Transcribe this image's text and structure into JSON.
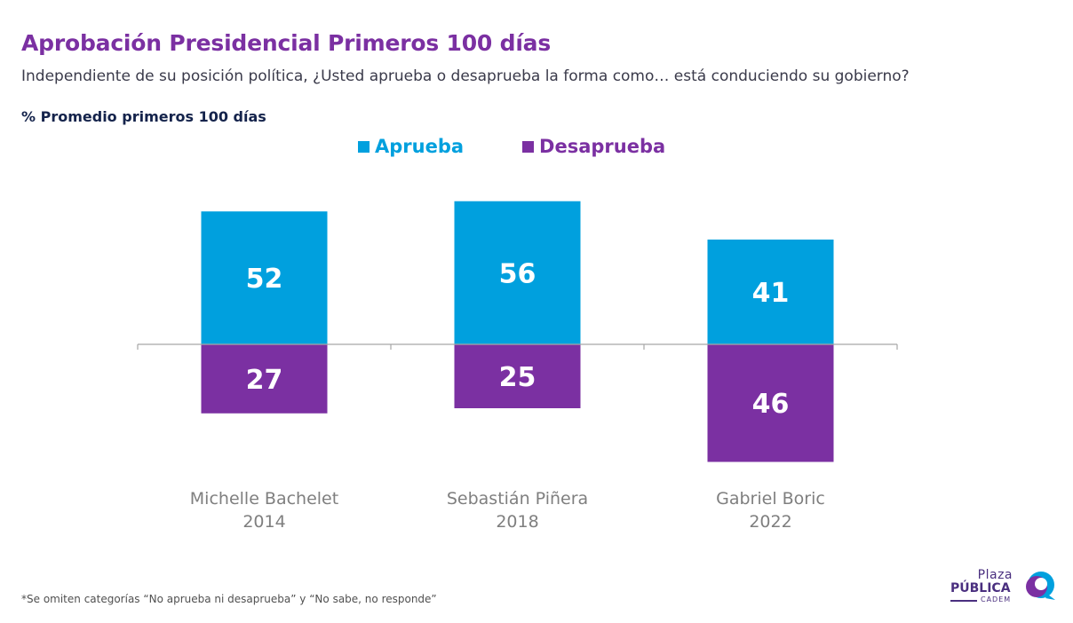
{
  "header": {
    "title": "Aprobación Presidencial Primeros 100 días",
    "subtitle": "Independiente de su posición política, ¿Usted aprueba o desaprueba la forma como… está conduciendo su gobierno?",
    "note": "% Promedio primeros 100 días"
  },
  "legend": {
    "approve": "Aprueba",
    "disapprove": "Desaprueba"
  },
  "footnote": "*Se omiten categorías “No aprueba ni desaprueba” y “No sabe, no responde”",
  "logo": {
    "line1": "Plaza",
    "line2": "PÚBLICA",
    "line3": "CADEM"
  },
  "colors": {
    "approve": "#00a0de",
    "disapprove": "#7b30a2",
    "title": "#7b30a2",
    "axis": "#a6a6a6"
  },
  "chart_data": {
    "type": "bar",
    "stacked": "diverging",
    "categories": [
      [
        "Michelle Bachelet",
        "2014"
      ],
      [
        "Sebastián Piñera",
        "2018"
      ],
      [
        "Gabriel Boric",
        "2022"
      ]
    ],
    "series": [
      {
        "name": "Aprueba",
        "values": [
          52,
          56,
          41
        ],
        "direction": "up"
      },
      {
        "name": "Desaprueba",
        "values": [
          27,
          25,
          46
        ],
        "direction": "down"
      }
    ],
    "title": "Aprobación Presidencial Primeros 100 días",
    "ylabel": "",
    "grid": false,
    "legend_position": "top"
  }
}
